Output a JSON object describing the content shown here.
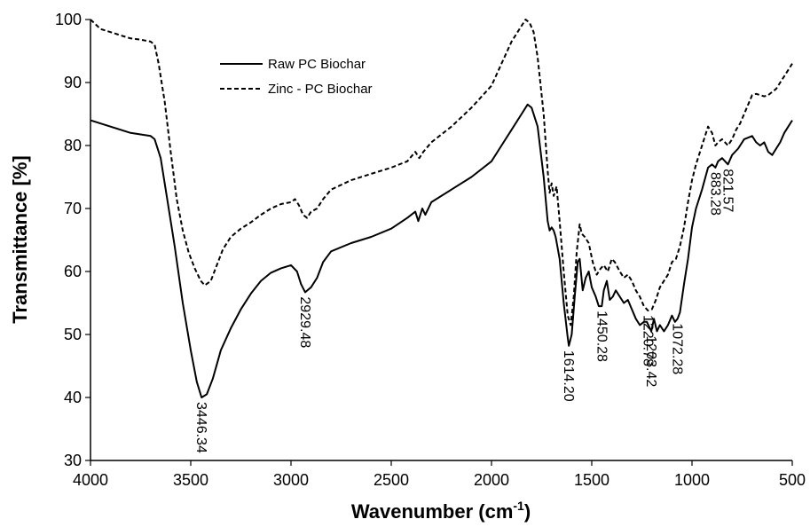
{
  "chart_data": {
    "type": "line",
    "title": "",
    "xlabel": "Wavenumber (cm",
    "xlabel_sup": "-1",
    "xlabel_close": ")",
    "ylabel": "Transmittance [%]",
    "xlim": [
      4000,
      500
    ],
    "ylim": [
      30,
      100
    ],
    "x_ticks": [
      4000,
      3500,
      3000,
      2500,
      2000,
      1500,
      1000,
      500
    ],
    "y_ticks": [
      30,
      40,
      50,
      60,
      70,
      80,
      90,
      100
    ],
    "grid": false,
    "legend_position": "top-left",
    "series": [
      {
        "name": "Raw PC Biochar",
        "style": "solid",
        "color": "#000000",
        "points": [
          [
            4000,
            84.0
          ],
          [
            3900,
            83.0
          ],
          [
            3800,
            82.0
          ],
          [
            3700,
            81.5
          ],
          [
            3680,
            81.0
          ],
          [
            3650,
            78.0
          ],
          [
            3620,
            72.0
          ],
          [
            3580,
            64.0
          ],
          [
            3540,
            55.0
          ],
          [
            3500,
            47.5
          ],
          [
            3470,
            42.5
          ],
          [
            3446,
            40.0
          ],
          [
            3420,
            40.5
          ],
          [
            3390,
            43.0
          ],
          [
            3350,
            47.5
          ],
          [
            3300,
            51.0
          ],
          [
            3250,
            54.0
          ],
          [
            3200,
            56.5
          ],
          [
            3150,
            58.5
          ],
          [
            3100,
            59.8
          ],
          [
            3050,
            60.5
          ],
          [
            3000,
            61.0
          ],
          [
            2970,
            60.0
          ],
          [
            2950,
            58.0
          ],
          [
            2929,
            56.7
          ],
          [
            2900,
            57.5
          ],
          [
            2870,
            59.0
          ],
          [
            2840,
            61.5
          ],
          [
            2800,
            63.2
          ],
          [
            2700,
            64.5
          ],
          [
            2600,
            65.5
          ],
          [
            2500,
            66.8
          ],
          [
            2420,
            68.5
          ],
          [
            2380,
            69.5
          ],
          [
            2365,
            68.0
          ],
          [
            2345,
            70.0
          ],
          [
            2330,
            69.0
          ],
          [
            2300,
            71.0
          ],
          [
            2200,
            73.0
          ],
          [
            2100,
            75.0
          ],
          [
            2000,
            77.5
          ],
          [
            1950,
            80.0
          ],
          [
            1900,
            82.5
          ],
          [
            1850,
            85.0
          ],
          [
            1820,
            86.5
          ],
          [
            1800,
            86.0
          ],
          [
            1770,
            83.0
          ],
          [
            1740,
            75.0
          ],
          [
            1720,
            68.0
          ],
          [
            1710,
            66.5
          ],
          [
            1700,
            67.0
          ],
          [
            1690,
            66.5
          ],
          [
            1680,
            65.5
          ],
          [
            1660,
            62.0
          ],
          [
            1640,
            55.0
          ],
          [
            1620,
            49.5
          ],
          [
            1614,
            48.2
          ],
          [
            1600,
            50.0
          ],
          [
            1585,
            56.0
          ],
          [
            1570,
            61.5
          ],
          [
            1560,
            62.0
          ],
          [
            1545,
            57.0
          ],
          [
            1530,
            59.0
          ],
          [
            1515,
            60.0
          ],
          [
            1500,
            57.5
          ],
          [
            1480,
            56.0
          ],
          [
            1465,
            54.5
          ],
          [
            1450,
            54.5
          ],
          [
            1440,
            57.0
          ],
          [
            1425,
            58.5
          ],
          [
            1410,
            55.5
          ],
          [
            1395,
            56.0
          ],
          [
            1380,
            57.0
          ],
          [
            1360,
            56.0
          ],
          [
            1340,
            55.0
          ],
          [
            1320,
            55.5
          ],
          [
            1300,
            54.0
          ],
          [
            1280,
            52.5
          ],
          [
            1260,
            51.5
          ],
          [
            1240,
            52.0
          ],
          [
            1225,
            52.0
          ],
          [
            1203,
            50.5
          ],
          [
            1190,
            52.5
          ],
          [
            1175,
            50.5
          ],
          [
            1160,
            51.5
          ],
          [
            1140,
            50.5
          ],
          [
            1120,
            51.5
          ],
          [
            1100,
            53.0
          ],
          [
            1085,
            52.0
          ],
          [
            1072,
            52.5
          ],
          [
            1060,
            53.5
          ],
          [
            1040,
            58.0
          ],
          [
            1020,
            62.0
          ],
          [
            1000,
            67.0
          ],
          [
            980,
            70.0
          ],
          [
            950,
            73.0
          ],
          [
            920,
            76.5
          ],
          [
            900,
            77.0
          ],
          [
            883,
            76.5
          ],
          [
            870,
            77.5
          ],
          [
            850,
            78.0
          ],
          [
            821,
            77.0
          ],
          [
            800,
            78.5
          ],
          [
            770,
            79.5
          ],
          [
            740,
            81.0
          ],
          [
            700,
            81.5
          ],
          [
            680,
            80.5
          ],
          [
            660,
            80.0
          ],
          [
            640,
            80.5
          ],
          [
            620,
            79.0
          ],
          [
            600,
            78.5
          ],
          [
            580,
            79.5
          ],
          [
            560,
            80.5
          ],
          [
            540,
            82.0
          ],
          [
            520,
            83.0
          ],
          [
            500,
            84.0
          ]
        ]
      },
      {
        "name": "Zinc - PC Biochar",
        "style": "dashed",
        "color": "#000000",
        "points": [
          [
            4000,
            100.0
          ],
          [
            3950,
            98.5
          ],
          [
            3900,
            98.0
          ],
          [
            3850,
            97.5
          ],
          [
            3800,
            97.0
          ],
          [
            3750,
            96.8
          ],
          [
            3700,
            96.5
          ],
          [
            3680,
            96.0
          ],
          [
            3660,
            93.0
          ],
          [
            3630,
            87.0
          ],
          [
            3600,
            79.0
          ],
          [
            3570,
            71.5
          ],
          [
            3540,
            66.5
          ],
          [
            3510,
            63.0
          ],
          [
            3480,
            60.5
          ],
          [
            3450,
            58.5
          ],
          [
            3430,
            57.8
          ],
          [
            3400,
            58.5
          ],
          [
            3370,
            61.0
          ],
          [
            3340,
            63.5
          ],
          [
            3300,
            65.5
          ],
          [
            3250,
            66.8
          ],
          [
            3200,
            67.8
          ],
          [
            3150,
            69.0
          ],
          [
            3100,
            70.0
          ],
          [
            3050,
            70.7
          ],
          [
            3000,
            71.0
          ],
          [
            2980,
            71.5
          ],
          [
            2960,
            70.5
          ],
          [
            2940,
            69.0
          ],
          [
            2920,
            68.5
          ],
          [
            2900,
            69.5
          ],
          [
            2870,
            70.0
          ],
          [
            2840,
            71.5
          ],
          [
            2800,
            73.0
          ],
          [
            2700,
            74.5
          ],
          [
            2600,
            75.5
          ],
          [
            2500,
            76.5
          ],
          [
            2420,
            77.5
          ],
          [
            2380,
            79.0
          ],
          [
            2360,
            78.0
          ],
          [
            2340,
            79.0
          ],
          [
            2300,
            80.5
          ],
          [
            2200,
            83.0
          ],
          [
            2100,
            86.0
          ],
          [
            2000,
            89.5
          ],
          [
            1950,
            93.0
          ],
          [
            1900,
            96.5
          ],
          [
            1860,
            98.5
          ],
          [
            1830,
            100.0
          ],
          [
            1810,
            99.5
          ],
          [
            1790,
            98.0
          ],
          [
            1770,
            94.0
          ],
          [
            1740,
            85.0
          ],
          [
            1720,
            76.0
          ],
          [
            1710,
            72.5
          ],
          [
            1700,
            74.0
          ],
          [
            1690,
            72.0
          ],
          [
            1675,
            73.5
          ],
          [
            1660,
            68.0
          ],
          [
            1640,
            60.0
          ],
          [
            1620,
            53.0
          ],
          [
            1605,
            51.5
          ],
          [
            1590,
            56.0
          ],
          [
            1575,
            63.0
          ],
          [
            1560,
            67.5
          ],
          [
            1550,
            66.0
          ],
          [
            1535,
            65.5
          ],
          [
            1515,
            64.5
          ],
          [
            1495,
            61.5
          ],
          [
            1475,
            59.5
          ],
          [
            1455,
            60.5
          ],
          [
            1440,
            61.0
          ],
          [
            1420,
            60.0
          ],
          [
            1400,
            62.0
          ],
          [
            1385,
            61.5
          ],
          [
            1360,
            60.0
          ],
          [
            1340,
            59.0
          ],
          [
            1320,
            59.5
          ],
          [
            1300,
            58.5
          ],
          [
            1280,
            57.0
          ],
          [
            1260,
            56.0
          ],
          [
            1240,
            54.5
          ],
          [
            1220,
            53.8
          ],
          [
            1200,
            54.0
          ],
          [
            1180,
            55.5
          ],
          [
            1160,
            57.5
          ],
          [
            1140,
            58.5
          ],
          [
            1120,
            59.5
          ],
          [
            1100,
            61.5
          ],
          [
            1080,
            62.0
          ],
          [
            1060,
            64.0
          ],
          [
            1040,
            67.0
          ],
          [
            1020,
            71.0
          ],
          [
            1000,
            74.5
          ],
          [
            980,
            77.0
          ],
          [
            950,
            80.0
          ],
          [
            920,
            83.0
          ],
          [
            900,
            82.0
          ],
          [
            883,
            80.0
          ],
          [
            870,
            80.5
          ],
          [
            850,
            81.0
          ],
          [
            821,
            80.0
          ],
          [
            800,
            81.0
          ],
          [
            780,
            82.5
          ],
          [
            760,
            83.5
          ],
          [
            740,
            85.0
          ],
          [
            720,
            86.5
          ],
          [
            700,
            88.0
          ],
          [
            680,
            88.2
          ],
          [
            660,
            88.0
          ],
          [
            640,
            87.8
          ],
          [
            620,
            88.0
          ],
          [
            600,
            88.5
          ],
          [
            580,
            89.0
          ],
          [
            560,
            90.0
          ],
          [
            540,
            91.0
          ],
          [
            520,
            92.0
          ],
          [
            500,
            93.0
          ]
        ]
      }
    ],
    "annotations": [
      {
        "text": "3446.34",
        "x": 3446,
        "y": 40.0
      },
      {
        "text": "2929.48",
        "x": 2929,
        "y": 56.7
      },
      {
        "text": "1614.20",
        "x": 1614,
        "y": 48.2
      },
      {
        "text": "1450.28",
        "x": 1450,
        "y": 54.5
      },
      {
        "text": "1220.78",
        "x": 1220,
        "y": 53.8
      },
      {
        "text": "1203.42",
        "x": 1203,
        "y": 50.5
      },
      {
        "text": "1072.28",
        "x": 1072,
        "y": 52.5
      },
      {
        "text": "883.28",
        "x": 883,
        "y": 76.5
      },
      {
        "text": "821.57",
        "x": 821,
        "y": 77.0
      }
    ]
  }
}
